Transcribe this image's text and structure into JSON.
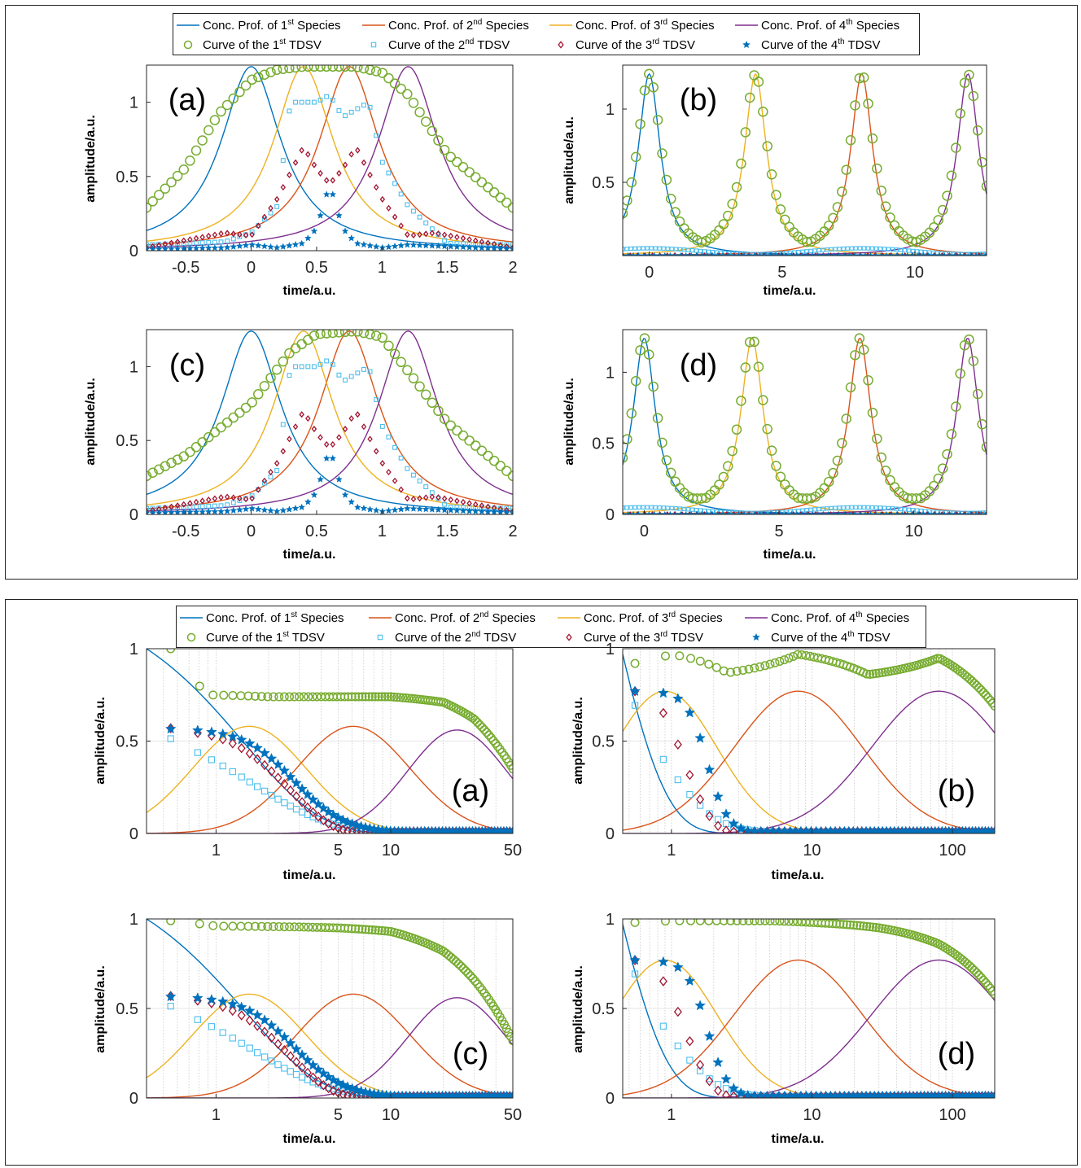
{
  "colors": {
    "species1": "#0072BD",
    "species2": "#D95319",
    "species3": "#EDB120",
    "species4": "#7E2F8E",
    "tdsv1": "#77AC30",
    "tdsv2": "#4DBEEE",
    "tdsv3": "#A2142F",
    "tdsv4": "#0072BD"
  },
  "legend": {
    "lines": [
      {
        "pre": "Conc. Prof. of 1",
        "sup": "st",
        "post": " Species",
        "color": "#0072BD"
      },
      {
        "pre": "Conc. Prof. of 2",
        "sup": "nd",
        "post": " Species",
        "color": "#D95319"
      },
      {
        "pre": "Conc. Prof. of 3",
        "sup": "rd",
        "post": " Species",
        "color": "#EDB120"
      },
      {
        "pre": "Conc. Prof. of 4",
        "sup": "th",
        "post": " Species",
        "color": "#7E2F8E"
      }
    ],
    "markers": [
      {
        "pre": "Curve of the 1",
        "sup": "st",
        "post": " TDSV",
        "marker": "circle",
        "color": "#77AC30"
      },
      {
        "pre": "Curve of the 2",
        "sup": "nd",
        "post": " TDSV",
        "marker": "square",
        "color": "#4DBEEE"
      },
      {
        "pre": "Curve of the 3",
        "sup": "rd",
        "post": " TDSV",
        "marker": "diamond",
        "color": "#A2142F"
      },
      {
        "pre": "Curve of the 4",
        "sup": "th",
        "post": " TDSV",
        "marker": "star",
        "color": "#0072BD"
      }
    ]
  },
  "chart_data": [
    {
      "figure": 1,
      "panel": "(a)",
      "type": "line",
      "xlabel": "time/a.u.",
      "ylabel": "amplitude/a.u.",
      "xlim": [
        -0.8,
        2
      ],
      "ylim": [
        0,
        1.25
      ],
      "xticks": [
        -0.5,
        0,
        0.5,
        1,
        1.5,
        2
      ],
      "yticks": [
        0,
        0.5,
        1
      ],
      "xtick_labels": [
        "-0.5",
        "0",
        "0.5",
        "1",
        "1.5",
        "2"
      ],
      "ytick_labels": [
        "0",
        "0.5",
        "1"
      ],
      "series": [
        {
          "name": "Conc. Prof. of 1st Species",
          "x": [
            -0.8,
            -0.5,
            -0.25,
            0,
            0.25,
            0.5,
            0.75,
            1,
            1.5,
            2
          ],
          "values": [
            0.29,
            0.55,
            0.92,
            1.24,
            0.92,
            0.55,
            0.35,
            0.24,
            0.13,
            0.09
          ]
        },
        {
          "name": "Conc. Prof. of 2nd Species",
          "x": [
            -0.8,
            -0.4,
            0,
            0.3,
            0.5,
            0.75,
            1,
            1.25,
            1.5,
            2
          ],
          "values": [
            0.11,
            0.17,
            0.3,
            0.6,
            0.92,
            1.24,
            0.92,
            0.55,
            0.35,
            0.17
          ]
        },
        {
          "name": "Conc. Prof. of 3rd Species",
          "x": [
            -0.8,
            -0.4,
            0,
            0.2,
            0.4,
            0.6,
            0.8,
            1,
            1.5,
            2
          ],
          "values": [
            0.17,
            0.35,
            0.65,
            0.92,
            1.24,
            0.92,
            0.6,
            0.35,
            0.17,
            0.11
          ]
        },
        {
          "name": "Conc. Prof. of 4th Species",
          "x": [
            -0.8,
            -0.4,
            0,
            0.4,
            0.8,
            1,
            1.2,
            1.4,
            1.6,
            2
          ],
          "values": [
            0.07,
            0.1,
            0.15,
            0.25,
            0.55,
            0.92,
            1.24,
            0.92,
            0.55,
            0.28
          ]
        },
        {
          "name": "Curve of the 1st TDSV",
          "x": [
            -0.8,
            -0.5,
            -0.25,
            0,
            0.2,
            0.4,
            0.6,
            0.8,
            1,
            1.2,
            1.5,
            2
          ],
          "values": [
            0.29,
            0.56,
            0.92,
            1.15,
            1.22,
            1.24,
            1.24,
            1.24,
            1.2,
            1.05,
            0.65,
            0.29
          ]
        },
        {
          "name": "Curve of the 2nd TDSV",
          "x": [
            -0.8,
            -0.2,
            0,
            0.2,
            0.3,
            0.5,
            0.6,
            0.7,
            0.9,
            1.0,
            1.2,
            1.5,
            2
          ],
          "values": [
            0.04,
            0.06,
            0.12,
            0.3,
            1.0,
            1.0,
            1.05,
            0.9,
            1.0,
            0.6,
            0.3,
            0.05,
            0.04
          ]
        },
        {
          "name": "Curve of the 3rd TDSV",
          "x": [
            -0.8,
            -0.2,
            0,
            0.2,
            0.4,
            0.5,
            0.6,
            0.7,
            0.8,
            1.0,
            1.2,
            1.4,
            2
          ],
          "values": [
            0.02,
            0.12,
            0.1,
            0.35,
            0.7,
            0.55,
            0.45,
            0.55,
            0.7,
            0.35,
            0.1,
            0.12,
            0.02
          ]
        },
        {
          "name": "Curve of the 4th TDSV",
          "x": [
            -0.8,
            -0.2,
            0,
            0.2,
            0.4,
            0.5,
            0.6,
            0.7,
            0.8,
            1.0,
            1.2,
            2
          ],
          "values": [
            0.01,
            0.02,
            0.04,
            0.02,
            0.05,
            0.15,
            0.45,
            0.15,
            0.05,
            0.02,
            0.04,
            0.01
          ]
        }
      ]
    },
    {
      "figure": 1,
      "panel": "(b)",
      "type": "line",
      "xlabel": "time/a.u.",
      "ylabel": "amplitude/a.u.",
      "xlim": [
        -1,
        12.7
      ],
      "ylim": [
        0,
        1.3
      ],
      "xticks": [
        0,
        5,
        10
      ],
      "yticks": [
        0.5,
        1
      ],
      "xtick_labels": [
        "0",
        "5",
        "10"
      ],
      "ytick_labels": [
        "0.5",
        "1"
      ],
      "peaks": [
        0,
        4,
        8,
        12
      ],
      "peak_height": 1.24,
      "tdsv1_minimum": 0.1
    },
    {
      "figure": 1,
      "panel": "(c)",
      "type": "line",
      "xlabel": "time/a.u.",
      "ylabel": "amplitude/a.u.",
      "xlim": [
        -0.8,
        2
      ],
      "ylim": [
        0,
        1.25
      ],
      "xticks": [
        -0.5,
        0,
        0.5,
        1,
        1.5,
        2
      ],
      "yticks": [
        0,
        0.5,
        1
      ],
      "xtick_labels": [
        "-0.5",
        "0",
        "0.5",
        "1",
        "1.5",
        "2"
      ],
      "ytick_labels": [
        "0",
        "0.5",
        "1"
      ],
      "tdsv1": {
        "x": [
          -0.8,
          -0.5,
          0,
          0.3,
          0.5,
          0.8,
          1,
          1.5,
          2
        ],
        "values": [
          0.26,
          0.4,
          0.75,
          1.1,
          1.22,
          1.24,
          1.2,
          0.62,
          0.26
        ]
      }
    },
    {
      "figure": 1,
      "panel": "(d)",
      "type": "line",
      "xlabel": "time/a.u.",
      "ylabel": "amplitude/a.u.",
      "xlim": [
        -0.8,
        12.7
      ],
      "ylim": [
        0,
        1.3
      ],
      "xticks": [
        0,
        5,
        10
      ],
      "yticks": [
        0,
        0.5,
        1
      ],
      "xtick_labels": [
        "0",
        "5",
        "10"
      ],
      "ytick_labels": [
        "0",
        "0.5",
        "1"
      ],
      "peaks": [
        0,
        4,
        8,
        12
      ],
      "peak_height": 1.24,
      "tdsv1_minimum": 0.14
    },
    {
      "figure": 2,
      "panel": "(a)",
      "type": "line",
      "xscale": "log",
      "xlabel": "time/a.u.",
      "ylabel": "amplitude/a.u.",
      "xlim": [
        0.4,
        50
      ],
      "ylim": [
        0,
        1
      ],
      "xticks": [
        1,
        5,
        10,
        50
      ],
      "yticks": [
        0,
        0.5,
        1
      ],
      "xtick_labels": [
        "1",
        "5",
        "10",
        "50"
      ],
      "ytick_labels": [
        "0",
        "0.5",
        "1"
      ],
      "species_peaks": [
        {
          "x": 0.4,
          "y": 1.0
        },
        {
          "x": 1.55,
          "y": 0.58
        },
        {
          "x": 6.1,
          "y": 0.58
        },
        {
          "x": 24,
          "y": 0.56
        }
      ],
      "tdsv1": {
        "x": [
          0.55,
          0.7,
          0.9,
          2,
          10,
          20,
          30,
          50
        ],
        "values": [
          1.0,
          0.85,
          0.75,
          0.74,
          0.74,
          0.71,
          0.62,
          0.35
        ]
      }
    },
    {
      "figure": 2,
      "panel": "(b)",
      "type": "line",
      "xscale": "log",
      "xlabel": "time/a.u.",
      "ylabel": "amplitude/a.u.",
      "xlim": [
        0.45,
        200
      ],
      "ylim": [
        0,
        1
      ],
      "xticks": [
        1,
        10,
        100
      ],
      "yticks": [
        0,
        0.5,
        1
      ],
      "xtick_labels": [
        "1",
        "10",
        "100"
      ],
      "ytick_labels": [
        "0",
        "0.5",
        "1"
      ],
      "species_peaks": [
        {
          "x": 0.45,
          "y": 0.97
        },
        {
          "x": 0.9,
          "y": 0.77
        },
        {
          "x": 8,
          "y": 0.77
        },
        {
          "x": 80,
          "y": 0.77
        }
      ],
      "tdsv1": {
        "x": [
          0.55,
          0.8,
          1.0,
          1.5,
          2.5,
          8,
          25,
          80,
          200
        ],
        "values": [
          0.92,
          0.95,
          0.97,
          0.94,
          0.87,
          0.97,
          0.86,
          0.95,
          0.69
        ]
      }
    },
    {
      "figure": 2,
      "panel": "(c)",
      "type": "line",
      "xscale": "log",
      "xlabel": "time/a.u.",
      "ylabel": "amplitude/a.u.",
      "xlim": [
        0.4,
        50
      ],
      "ylim": [
        0,
        1
      ],
      "xticks": [
        1,
        5,
        10,
        50
      ],
      "yticks": [
        0,
        0.5,
        1
      ],
      "xtick_labels": [
        "1",
        "5",
        "10",
        "50"
      ],
      "ytick_labels": [
        "0",
        "0.5",
        "1"
      ],
      "species_peaks": [
        {
          "x": 0.4,
          "y": 1.0
        },
        {
          "x": 1.55,
          "y": 0.58
        },
        {
          "x": 6.1,
          "y": 0.58
        },
        {
          "x": 24,
          "y": 0.56
        }
      ],
      "tdsv1": {
        "x": [
          0.55,
          1,
          5,
          10,
          20,
          30,
          50
        ],
        "values": [
          0.99,
          0.96,
          0.95,
          0.93,
          0.82,
          0.66,
          0.32
        ]
      }
    },
    {
      "figure": 2,
      "panel": "(d)",
      "type": "line",
      "xscale": "log",
      "xlabel": "time/a.u.",
      "ylabel": "amplitude/a.u.",
      "xlim": [
        0.45,
        200
      ],
      "ylim": [
        0,
        1
      ],
      "xticks": [
        1,
        10,
        100
      ],
      "yticks": [
        0,
        0.5,
        1
      ],
      "xtick_labels": [
        "1",
        "10",
        "100"
      ],
      "ytick_labels": [
        "0",
        "0.5",
        "1"
      ],
      "species_peaks": [
        {
          "x": 0.45,
          "y": 0.97
        },
        {
          "x": 0.9,
          "y": 0.77
        },
        {
          "x": 8,
          "y": 0.77
        },
        {
          "x": 80,
          "y": 0.77
        }
      ],
      "tdsv1": {
        "x": [
          0.55,
          1,
          5,
          10,
          30,
          80,
          200
        ],
        "values": [
          0.98,
          0.99,
          0.99,
          0.98,
          0.95,
          0.86,
          0.58
        ]
      }
    }
  ]
}
